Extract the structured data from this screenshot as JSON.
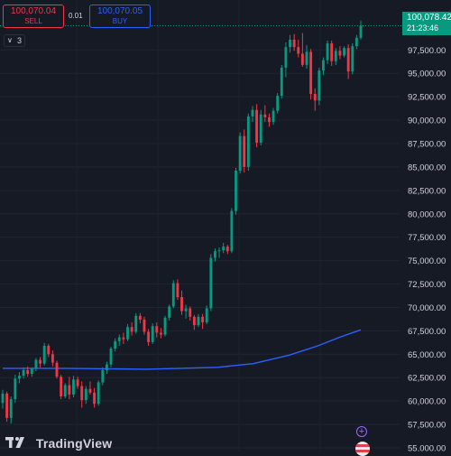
{
  "trade_panel": {
    "sell_price": "100,070.04",
    "sell_label": "SELL",
    "spread": "0.01",
    "buy_price": "100,070.05",
    "buy_label": "BUY"
  },
  "indicators": {
    "toggle_icon": "chevron-down-icon",
    "count": "3"
  },
  "last_price": {
    "value": "100,078.42",
    "countdown": "21:23:46"
  },
  "branding": {
    "logo_text": "TradingView"
  },
  "colors": {
    "background": "#161a25",
    "up": "#089981",
    "down": "#f23645",
    "moving_average": "#2962ff",
    "axis_text": "#d1d4dc"
  },
  "chart_data": {
    "type": "candlestick",
    "y_axis": {
      "ticks": [
        "97,500.00",
        "95,000.00",
        "92,500.00",
        "90,000.00",
        "87,500.00",
        "85,000.00",
        "82,500.00",
        "80,000.00",
        "77,500.00",
        "75,000.00",
        "72,500.00",
        "70,000.00",
        "67,500.00",
        "65,000.00",
        "62,500.00",
        "60,000.00",
        "57,500.00",
        "55,000.00"
      ],
      "range": [
        55000,
        101000
      ],
      "position": "right"
    },
    "grid": true,
    "candles": [
      [
        59800,
        61200,
        59200,
        60800
      ],
      [
        60800,
        61000,
        57800,
        58200
      ],
      [
        58200,
        60500,
        57600,
        60200
      ],
      [
        60200,
        62800,
        59800,
        62400
      ],
      [
        62400,
        63100,
        61900,
        62700
      ],
      [
        62700,
        63600,
        62400,
        63300
      ],
      [
        63300,
        63700,
        62600,
        62900
      ],
      [
        62900,
        63600,
        62600,
        63500
      ],
      [
        63500,
        64600,
        63200,
        64400
      ],
      [
        64400,
        64700,
        63600,
        64000
      ],
      [
        64000,
        66200,
        63800,
        65900
      ],
      [
        65900,
        66100,
        64700,
        65000
      ],
      [
        65000,
        65400,
        63700,
        64100
      ],
      [
        64100,
        64300,
        62400,
        62600
      ],
      [
        62600,
        62800,
        60200,
        60500
      ],
      [
        60500,
        61900,
        60300,
        61700
      ],
      [
        61700,
        62600,
        60200,
        60700
      ],
      [
        60700,
        62700,
        60400,
        62300
      ],
      [
        62300,
        62600,
        61300,
        61600
      ],
      [
        61600,
        62100,
        59300,
        60100
      ],
      [
        60100,
        61600,
        59700,
        61300
      ],
      [
        61300,
        62100,
        60700,
        60900
      ],
      [
        60900,
        61400,
        59300,
        59700
      ],
      [
        59700,
        62200,
        59500,
        62000
      ],
      [
        62000,
        63600,
        61700,
        63300
      ],
      [
        63300,
        64200,
        62900,
        63900
      ],
      [
        63900,
        65800,
        63600,
        65600
      ],
      [
        65600,
        66700,
        65300,
        66400
      ],
      [
        66400,
        67100,
        65900,
        66800
      ],
      [
        66800,
        67300,
        66100,
        66600
      ],
      [
        66600,
        68200,
        66400,
        67900
      ],
      [
        67900,
        68400,
        67000,
        67400
      ],
      [
        67400,
        69400,
        67200,
        69100
      ],
      [
        69100,
        69400,
        68300,
        68700
      ],
      [
        68700,
        69000,
        67100,
        67400
      ],
      [
        67400,
        67700,
        65900,
        66300
      ],
      [
        66300,
        68300,
        66100,
        68000
      ],
      [
        68000,
        68400,
        66800,
        67300
      ],
      [
        67300,
        67800,
        66700,
        67100
      ],
      [
        67100,
        69100,
        66900,
        68900
      ],
      [
        68900,
        70300,
        68600,
        70100
      ],
      [
        70100,
        72900,
        69900,
        72600
      ],
      [
        72600,
        73000,
        70800,
        71100
      ],
      [
        71100,
        71800,
        69200,
        69600
      ],
      [
        69600,
        70300,
        68800,
        69900
      ],
      [
        69900,
        70100,
        68600,
        69000
      ],
      [
        69000,
        69200,
        67600,
        68100
      ],
      [
        68100,
        69300,
        67900,
        69000
      ],
      [
        69000,
        69300,
        67700,
        68400
      ],
      [
        68400,
        70200,
        68200,
        69900
      ],
      [
        69900,
        75700,
        69600,
        75300
      ],
      [
        75300,
        76300,
        74900,
        76000
      ],
      [
        76000,
        76400,
        75300,
        76100
      ],
      [
        76100,
        76900,
        75800,
        76500
      ],
      [
        76500,
        76700,
        75700,
        76000
      ],
      [
        76000,
        80600,
        75800,
        80300
      ],
      [
        80300,
        84900,
        79900,
        84600
      ],
      [
        84600,
        88700,
        84300,
        88300
      ],
      [
        88300,
        89000,
        84400,
        85000
      ],
      [
        85000,
        90700,
        84600,
        90400
      ],
      [
        90400,
        91500,
        89800,
        91100
      ],
      [
        91100,
        91700,
        87100,
        87600
      ],
      [
        87600,
        91100,
        87300,
        90600
      ],
      [
        90600,
        91600,
        89800,
        90300
      ],
      [
        90300,
        90700,
        89300,
        89800
      ],
      [
        89800,
        91300,
        89500,
        91000
      ],
      [
        91000,
        92900,
        90700,
        92600
      ],
      [
        92600,
        95900,
        92300,
        95600
      ],
      [
        95600,
        98300,
        94600,
        97800
      ],
      [
        97800,
        99100,
        97200,
        98600
      ],
      [
        98600,
        99200,
        97400,
        97800
      ],
      [
        97800,
        98600,
        96700,
        97100
      ],
      [
        97100,
        99300,
        95700,
        95900
      ],
      [
        95900,
        98000,
        95500,
        97300
      ],
      [
        97300,
        97600,
        92200,
        92800
      ],
      [
        92800,
        93400,
        91000,
        92100
      ],
      [
        92100,
        95600,
        91600,
        95300
      ],
      [
        95300,
        96700,
        94800,
        96400
      ],
      [
        96400,
        98500,
        96000,
        98200
      ],
      [
        98200,
        98500,
        95800,
        96300
      ],
      [
        96300,
        97700,
        95900,
        97400
      ],
      [
        97400,
        97900,
        96500,
        96900
      ],
      [
        96900,
        97900,
        96700,
        97700
      ],
      [
        97700,
        98100,
        94400,
        95200
      ],
      [
        95200,
        98200,
        94900,
        97900
      ],
      [
        97900,
        99100,
        97600,
        98800
      ],
      [
        98800,
        100600,
        98600,
        100078.42
      ]
    ],
    "moving_average": [
      [
        0,
        63500
      ],
      [
        18,
        63500
      ],
      [
        40,
        63400
      ],
      [
        60,
        63600
      ],
      [
        70,
        64000
      ],
      [
        80,
        64900
      ],
      [
        88,
        65900
      ],
      [
        94,
        66800
      ],
      [
        100,
        67600
      ]
    ]
  }
}
